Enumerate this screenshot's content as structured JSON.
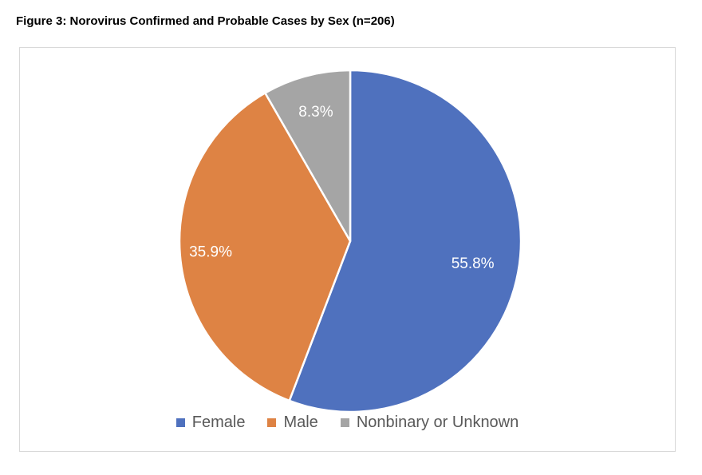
{
  "figure_title": "Figure 3: Norovirus Confirmed and Probable Cases by Sex (n=206)",
  "chart_data": {
    "type": "pie",
    "title": "",
    "categories": [
      "Female",
      "Male",
      "Nonbinary or Unknown"
    ],
    "values": [
      55.8,
      35.9,
      8.3
    ],
    "labels": [
      "55.8%",
      "35.9%",
      "8.3%"
    ],
    "colors": [
      "#4f71be",
      "#de8344",
      "#a5a5a5"
    ],
    "start_angle": "12 o'clock",
    "direction": "clockwise",
    "legend_position": "bottom"
  },
  "legend": {
    "items": [
      {
        "label": "Female",
        "color": "#4f71be"
      },
      {
        "label": "Male",
        "color": "#de8344"
      },
      {
        "label": "Nonbinary or Unknown",
        "color": "#a5a5a5"
      }
    ]
  }
}
